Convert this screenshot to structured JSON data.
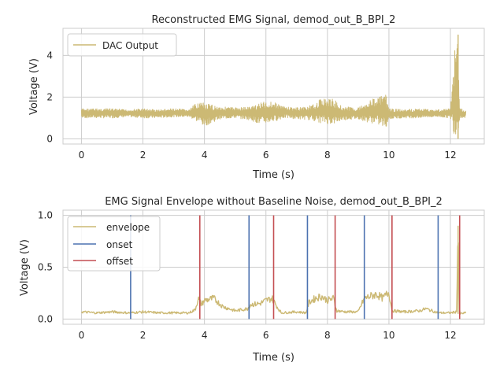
{
  "chart_data": [
    {
      "type": "line",
      "title": "Reconstructed EMG Signal, demod_out_B_BPI_2",
      "xlabel": "Time (s)",
      "ylabel": "Voltage (V)",
      "xlim": [
        -0.6,
        13.1
      ],
      "ylim": [
        -0.25,
        5.3
      ],
      "xticks": [
        0,
        2,
        4,
        6,
        8,
        10,
        12
      ],
      "yticks": [
        0,
        2,
        4
      ],
      "grid": true,
      "legend": "upper left",
      "series": [
        {
          "name": "DAC Output",
          "color": "#ccb974",
          "x": [
            0,
            0.5,
            1,
            1.5,
            2,
            2.5,
            3,
            3.5,
            3.8,
            4.0,
            4.5,
            5.0,
            5.5,
            5.8,
            6.2,
            6.6,
            7.0,
            7.5,
            7.8,
            8.2,
            8.5,
            9.0,
            9.3,
            9.6,
            9.9,
            10.0,
            10.5,
            11.0,
            11.5,
            12.0,
            12.15,
            12.25,
            12.3,
            12.5
          ],
          "y_min": [
            1.0,
            1.0,
            1.0,
            1.05,
            1.0,
            1.0,
            1.05,
            1.05,
            0.8,
            0.6,
            0.95,
            1.0,
            0.9,
            0.7,
            0.8,
            1.0,
            0.95,
            0.9,
            0.75,
            0.7,
            0.9,
            0.95,
            0.8,
            0.7,
            0.5,
            0.95,
            1.0,
            1.0,
            1.05,
            1.0,
            0.0,
            0.0,
            1.0,
            1.0
          ],
          "y_max": [
            1.45,
            1.45,
            1.45,
            1.4,
            1.45,
            1.4,
            1.45,
            1.4,
            1.8,
            1.7,
            1.55,
            1.5,
            1.55,
            1.75,
            1.8,
            1.55,
            1.5,
            1.6,
            1.95,
            1.9,
            1.55,
            1.5,
            1.8,
            2.0,
            2.1,
            1.45,
            1.4,
            1.45,
            1.4,
            1.45,
            4.6,
            5.0,
            1.45,
            1.4
          ]
        }
      ]
    },
    {
      "type": "line",
      "title": "EMG Signal Envelope without Baseline Noise, demod_out_B_BPI_2",
      "xlabel": "Time (s)",
      "ylabel": "Voltage (V)",
      "xlim": [
        -0.6,
        13.1
      ],
      "ylim": [
        -0.05,
        1.05
      ],
      "xticks": [
        0,
        2,
        4,
        6,
        8,
        10,
        12
      ],
      "yticks": [
        0.0,
        0.5,
        1.0
      ],
      "ytick_labels": [
        "0.0",
        "0.5",
        "1.0"
      ],
      "grid": true,
      "legend": "upper left",
      "series": [
        {
          "name": "envelope",
          "color": "#ccb974",
          "x": [
            0,
            0.5,
            1.0,
            1.5,
            1.6,
            2.0,
            2.5,
            3.0,
            3.5,
            3.7,
            3.8,
            3.9,
            4.0,
            4.3,
            4.6,
            5.0,
            5.4,
            5.5,
            5.8,
            6.0,
            6.2,
            6.4,
            6.5,
            7.0,
            7.3,
            7.4,
            7.6,
            7.8,
            8.0,
            8.2,
            8.3,
            8.6,
            9.0,
            9.2,
            9.4,
            9.6,
            9.8,
            10.0,
            10.1,
            10.5,
            11.0,
            11.2,
            11.6,
            12.0,
            12.2,
            12.25,
            12.3,
            12.5
          ],
          "y": [
            0.07,
            0.06,
            0.07,
            0.06,
            0.06,
            0.07,
            0.06,
            0.06,
            0.06,
            0.09,
            0.2,
            0.14,
            0.18,
            0.2,
            0.12,
            0.08,
            0.1,
            0.14,
            0.15,
            0.18,
            0.2,
            0.1,
            0.06,
            0.07,
            0.06,
            0.16,
            0.2,
            0.22,
            0.18,
            0.2,
            0.08,
            0.07,
            0.07,
            0.2,
            0.22,
            0.24,
            0.2,
            0.26,
            0.08,
            0.07,
            0.08,
            0.1,
            0.06,
            0.06,
            0.07,
            0.9,
            0.05,
            0.06
          ]
        },
        {
          "name": "onset",
          "color": "#4c72b0",
          "x": [
            1.6,
            5.45,
            7.35,
            9.2,
            11.6
          ]
        },
        {
          "name": "offset",
          "color": "#c44e52",
          "x": [
            3.85,
            6.25,
            8.25,
            10.1,
            12.3
          ]
        }
      ]
    }
  ]
}
